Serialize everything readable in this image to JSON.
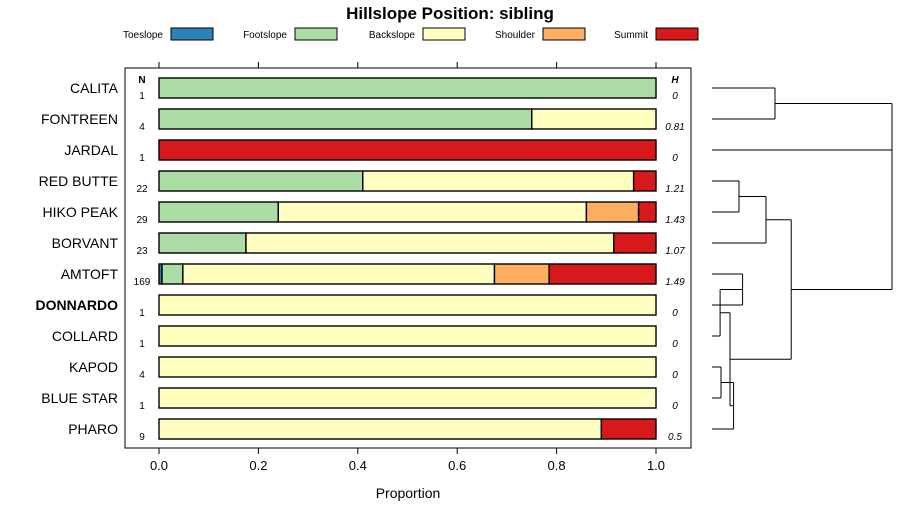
{
  "chart_data": {
    "type": "bar",
    "orientation": "horizontal",
    "stacked": true,
    "title": "Hillslope Position: sibling",
    "xlabel": "Proportion",
    "xlim": [
      0,
      1
    ],
    "xticks": [
      0,
      0.2,
      0.4,
      0.6,
      0.8,
      1
    ],
    "xtick_labels": [
      "0.0",
      "0.2",
      "0.4",
      "0.6",
      "0.8",
      "1.0"
    ],
    "n_header": "N",
    "h_header": "H",
    "legend_position": "top",
    "classes": [
      {
        "name": "Toeslope",
        "color": "#2b83ba"
      },
      {
        "name": "Footslope",
        "color": "#abdda4"
      },
      {
        "name": "Backslope",
        "color": "#ffffbf"
      },
      {
        "name": "Shoulder",
        "color": "#fdae61"
      },
      {
        "name": "Summit",
        "color": "#d7191c"
      }
    ],
    "rows": [
      {
        "name": "CALITA",
        "bold": false,
        "n": "1",
        "h": "0",
        "values": [
          0,
          1,
          0,
          0,
          0
        ]
      },
      {
        "name": "FONTREEN",
        "bold": false,
        "n": "4",
        "h": "0.81",
        "values": [
          0,
          0.75,
          0.25,
          0,
          0
        ]
      },
      {
        "name": "JARDAL",
        "bold": false,
        "n": "1",
        "h": "0",
        "values": [
          0,
          0,
          0,
          0,
          1
        ]
      },
      {
        "name": "RED BUTTE",
        "bold": false,
        "n": "22",
        "h": "1.21",
        "values": [
          0,
          0.41,
          0.545,
          0,
          0.045
        ]
      },
      {
        "name": "HIKO PEAK",
        "bold": false,
        "n": "29",
        "h": "1.43",
        "values": [
          0,
          0.24,
          0.62,
          0.105,
          0.035
        ]
      },
      {
        "name": "BORVANT",
        "bold": false,
        "n": "23",
        "h": "1.07",
        "values": [
          0,
          0.175,
          0.74,
          0,
          0.085
        ]
      },
      {
        "name": "AMTOFT",
        "bold": false,
        "n": "169",
        "h": "1.49",
        "values": [
          0.006,
          0.042,
          0.627,
          0.11,
          0.215
        ]
      },
      {
        "name": "DONNARDO",
        "bold": true,
        "n": "1",
        "h": "0",
        "values": [
          0,
          0,
          1,
          0,
          0
        ]
      },
      {
        "name": "COLLARD",
        "bold": false,
        "n": "1",
        "h": "0",
        "values": [
          0,
          0,
          1,
          0,
          0
        ]
      },
      {
        "name": "KAPOD",
        "bold": false,
        "n": "4",
        "h": "0",
        "values": [
          0,
          0,
          1,
          0,
          0
        ]
      },
      {
        "name": "BLUE STAR",
        "bold": false,
        "n": "1",
        "h": "0",
        "values": [
          0,
          0,
          1,
          0,
          0
        ]
      },
      {
        "name": "PHARO",
        "bold": false,
        "n": "9",
        "h": "0.5",
        "values": [
          0,
          0,
          0.89,
          0,
          0.11
        ]
      }
    ],
    "dendrogram": {
      "type": "cluster",
      "merges": [
        {
          "a": 0,
          "b": 1,
          "height": 0.35
        },
        {
          "a": "m0",
          "b": 2,
          "height": 1.0
        },
        {
          "a": 3,
          "b": 4,
          "height": 0.15
        },
        {
          "a": "m2",
          "b": 5,
          "height": 0.3
        },
        {
          "a": 6,
          "b": 7,
          "height": 0.17
        },
        {
          "a": "m4",
          "b": 8,
          "height": 0.045
        },
        {
          "a": 9,
          "b": 10,
          "height": 0.05
        },
        {
          "a": "m6",
          "b": 11,
          "height": 0.12
        },
        {
          "a": "m5",
          "b": "m7",
          "height": 0.1
        },
        {
          "a": "m3",
          "b": "m8",
          "height": 0.44
        },
        {
          "a": "m1",
          "b": "m9",
          "height": 1.0
        }
      ]
    }
  }
}
